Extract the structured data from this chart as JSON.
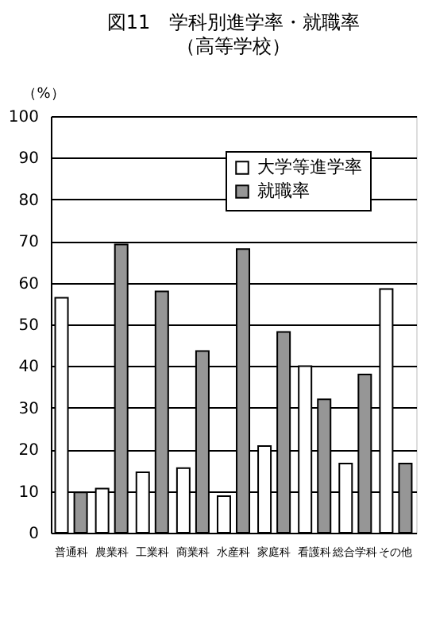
{
  "chart_data": {
    "type": "bar",
    "title": "図11　学科別進学率・就職率",
    "subtitle": "（高等学校）",
    "ylabel": "（%）",
    "categories": [
      "普通科",
      "農業科",
      "工業科",
      "商業科",
      "水産科",
      "家庭科",
      "看護科",
      "総合学科",
      "その他"
    ],
    "series": [
      {
        "name": "大学等進学率",
        "color": "#ffffff",
        "values": [
          56.4,
          10.6,
          14.5,
          15.5,
          8.8,
          20.8,
          40.0,
          16.6,
          58.5
        ]
      },
      {
        "name": "就職率",
        "color": "#969696",
        "values": [
          9.7,
          69.2,
          57.9,
          43.6,
          68.1,
          48.2,
          32.0,
          38.0,
          16.6
        ]
      }
    ],
    "ylim": [
      0,
      100
    ],
    "yticks": [
      0,
      10,
      20,
      30,
      40,
      50,
      60,
      70,
      80,
      90,
      100
    ],
    "grid": "y",
    "legend": "top right"
  }
}
